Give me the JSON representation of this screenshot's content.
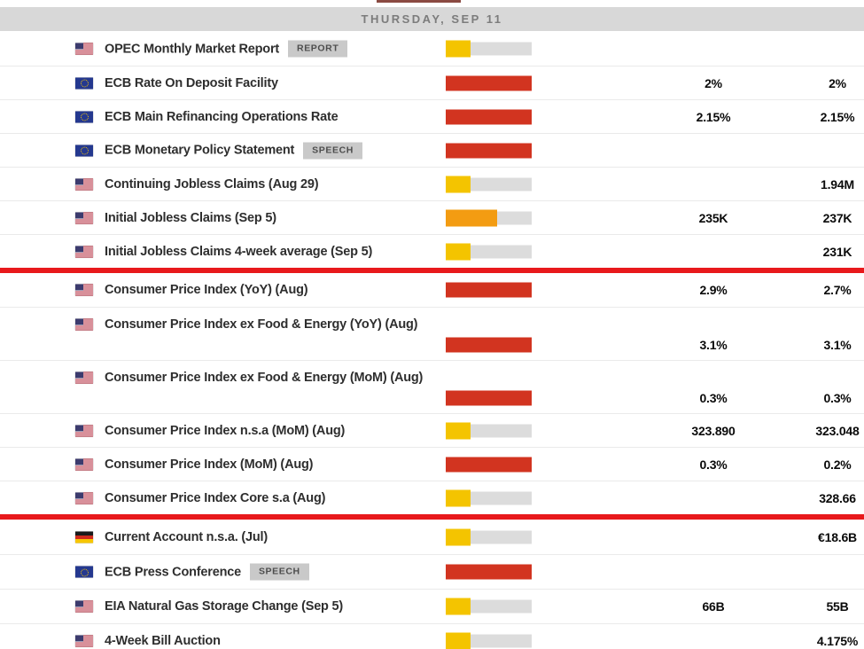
{
  "header": {
    "title": "THURSDAY, SEP 11"
  },
  "importance_colors": {
    "low": "#f4c400",
    "medium": "#f39c12",
    "high": "#d23420"
  },
  "divider_color": "#e8191c",
  "rows": [
    {
      "type": "event",
      "flag": "us",
      "title": "OPEC Monthly Market Report",
      "badge": "REPORT",
      "importance": "low",
      "forecast": "",
      "previous": ""
    },
    {
      "type": "event",
      "flag": "eu",
      "title": "ECB Rate On Deposit Facility",
      "importance": "high",
      "forecast": "2%",
      "previous": "2%"
    },
    {
      "type": "event",
      "flag": "eu",
      "title": "ECB Main Refinancing Operations Rate",
      "importance": "high",
      "forecast": "2.15%",
      "previous": "2.15%"
    },
    {
      "type": "event",
      "flag": "eu",
      "title": "ECB Monetary Policy Statement",
      "badge": "SPEECH",
      "importance": "high",
      "forecast": "",
      "previous": ""
    },
    {
      "type": "event",
      "flag": "us",
      "title": "Continuing Jobless Claims (Aug 29)",
      "importance": "low",
      "forecast": "",
      "previous": "1.94M"
    },
    {
      "type": "event",
      "flag": "us",
      "title": "Initial Jobless Claims (Sep 5)",
      "importance": "medium",
      "forecast": "235K",
      "previous": "237K"
    },
    {
      "type": "event",
      "flag": "us",
      "title": "Initial Jobless Claims 4-week average (Sep 5)",
      "importance": "low",
      "forecast": "",
      "previous": "231K"
    },
    {
      "type": "divider"
    },
    {
      "type": "event",
      "flag": "us",
      "title": "Consumer Price Index (YoY) (Aug)",
      "importance": "high",
      "forecast": "2.9%",
      "previous": "2.7%"
    },
    {
      "type": "event",
      "flag": "us",
      "title": "Consumer Price Index ex Food & Energy (YoY) (Aug)",
      "importance": "high",
      "forecast": "3.1%",
      "previous": "3.1%",
      "tall": true
    },
    {
      "type": "event",
      "flag": "us",
      "title": "Consumer Price Index ex Food & Energy (MoM) (Aug)",
      "importance": "high",
      "forecast": "0.3%",
      "previous": "0.3%",
      "tall": true
    },
    {
      "type": "event",
      "flag": "us",
      "title": "Consumer Price Index n.s.a (MoM) (Aug)",
      "importance": "low",
      "forecast": "323.890",
      "previous": "323.048"
    },
    {
      "type": "event",
      "flag": "us",
      "title": "Consumer Price Index (MoM) (Aug)",
      "importance": "high",
      "forecast": "0.3%",
      "previous": "0.2%"
    },
    {
      "type": "event",
      "flag": "us",
      "title": "Consumer Price Index Core s.a (Aug)",
      "importance": "low",
      "forecast": "",
      "previous": "328.66"
    },
    {
      "type": "divider"
    },
    {
      "type": "event",
      "flag": "de",
      "title": "Current Account n.s.a. (Jul)",
      "importance": "low",
      "forecast": "",
      "previous": "€18.6B"
    },
    {
      "type": "event",
      "flag": "eu",
      "title": "ECB Press Conference",
      "badge": "SPEECH",
      "importance": "high",
      "forecast": "",
      "previous": ""
    },
    {
      "type": "event",
      "flag": "us",
      "title": "EIA Natural Gas Storage Change (Sep 5)",
      "importance": "low",
      "forecast": "66B",
      "previous": "55B"
    },
    {
      "type": "event",
      "flag": "us",
      "title": "4-Week Bill Auction",
      "importance": "low",
      "forecast": "",
      "previous": "4.175%"
    }
  ]
}
